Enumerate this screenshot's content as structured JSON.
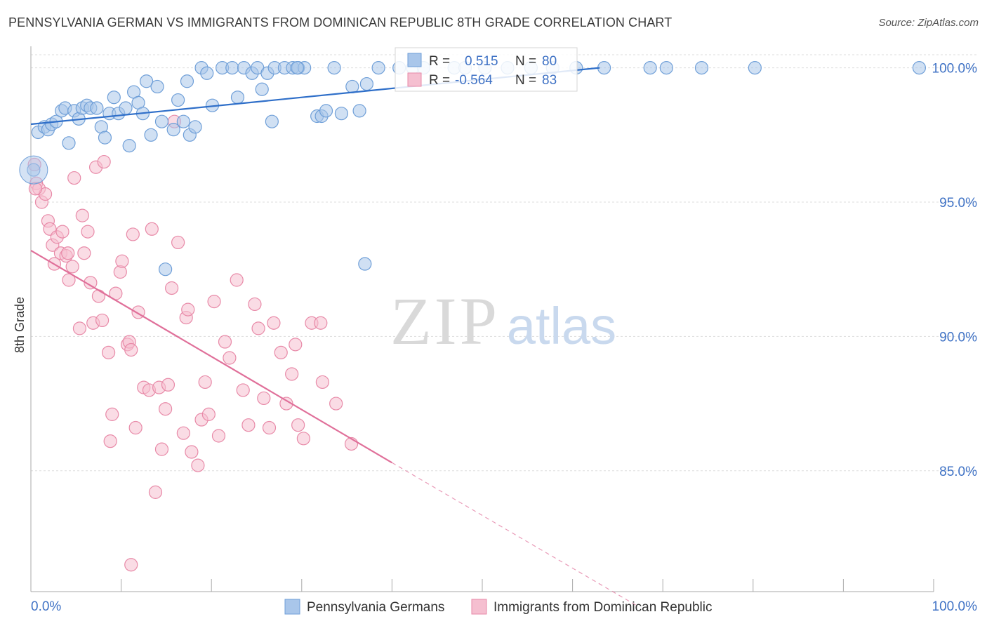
{
  "title": "PENNSYLVANIA GERMAN VS IMMIGRANTS FROM DOMINICAN REPUBLIC 8TH GRADE CORRELATION CHART",
  "source": "Source: ZipAtlas.com",
  "watermark": {
    "zip": "ZIP",
    "atlas": "atlas"
  },
  "legend_box": {
    "rows": [
      {
        "r_label": "R =",
        "r_value": "0.515",
        "n_label": "N =",
        "n_value": "80"
      },
      {
        "r_label": "R =",
        "r_value": "-0.564",
        "n_label": "N =",
        "n_value": "83"
      }
    ]
  },
  "colors": {
    "blue_fill": "#a9c6ea",
    "blue_stroke": "#6f9fd8",
    "blue_line": "#2f6fc9",
    "pink_fill": "#f5bfd0",
    "pink_stroke": "#e88aa8",
    "pink_line": "#e0709a",
    "value_text": "#3f72c5",
    "grid": "#dddddd",
    "axis": "#aaaaaa"
  },
  "chart_data": {
    "type": "scatter",
    "ylabel": "8th Grade",
    "xlim": [
      0,
      100
    ],
    "ylim": [
      80.5,
      100.8
    ],
    "x_tick_labels": [
      "0.0%",
      "100.0%"
    ],
    "y_ticks": [
      85,
      90,
      95,
      100
    ],
    "y_tick_labels": [
      "85.0%",
      "90.0%",
      "95.0%",
      "100.0%"
    ],
    "grid": true,
    "legend_position": "bottom",
    "series": [
      {
        "name": "Pennsylvania Germans",
        "r": 0.515,
        "n": 80,
        "trend": {
          "x0": 0,
          "y0": 97.9,
          "x1": 63,
          "y1": 100.0
        },
        "points": [
          [
            0.3,
            96.2
          ],
          [
            0.8,
            97.6
          ],
          [
            1.5,
            97.8
          ],
          [
            1.9,
            97.7
          ],
          [
            2.3,
            97.9
          ],
          [
            2.8,
            98.0
          ],
          [
            3.4,
            98.4
          ],
          [
            3.8,
            98.5
          ],
          [
            4.2,
            97.2
          ],
          [
            4.8,
            98.4
          ],
          [
            5.3,
            98.1
          ],
          [
            5.7,
            98.5
          ],
          [
            6.2,
            98.6
          ],
          [
            6.6,
            98.5
          ],
          [
            7.3,
            98.5
          ],
          [
            7.8,
            97.8
          ],
          [
            8.2,
            97.4
          ],
          [
            8.7,
            98.3
          ],
          [
            9.2,
            98.9
          ],
          [
            9.7,
            98.3
          ],
          [
            10.5,
            98.5
          ],
          [
            10.9,
            97.1
          ],
          [
            11.4,
            99.1
          ],
          [
            11.9,
            98.7
          ],
          [
            12.4,
            98.3
          ],
          [
            12.8,
            99.5
          ],
          [
            13.3,
            97.5
          ],
          [
            14.0,
            99.3
          ],
          [
            14.5,
            98.0
          ],
          [
            15.8,
            97.7
          ],
          [
            16.3,
            98.8
          ],
          [
            16.9,
            98.0
          ],
          [
            17.3,
            99.5
          ],
          [
            17.6,
            97.5
          ],
          [
            18.2,
            97.8
          ],
          [
            18.9,
            100.0
          ],
          [
            19.5,
            99.8
          ],
          [
            20.1,
            98.6
          ],
          [
            21.2,
            100.0
          ],
          [
            22.3,
            100.0
          ],
          [
            22.9,
            98.9
          ],
          [
            23.6,
            100.0
          ],
          [
            24.5,
            99.8
          ],
          [
            25.1,
            100.0
          ],
          [
            25.6,
            99.2
          ],
          [
            26.2,
            99.8
          ],
          [
            27.0,
            100.0
          ],
          [
            26.7,
            98.0
          ],
          [
            28.1,
            100.0
          ],
          [
            29.0,
            100.0
          ],
          [
            29.6,
            100.0
          ],
          [
            30.3,
            100.0
          ],
          [
            29.5,
            100.0
          ],
          [
            31.7,
            98.2
          ],
          [
            32.2,
            98.2
          ],
          [
            32.7,
            98.4
          ],
          [
            33.6,
            100.0
          ],
          [
            34.4,
            98.3
          ],
          [
            35.6,
            99.3
          ],
          [
            36.4,
            98.4
          ],
          [
            37.2,
            99.4
          ],
          [
            37.0,
            92.7
          ],
          [
            14.9,
            92.5
          ],
          [
            38.5,
            100.0
          ],
          [
            40.8,
            100.0
          ],
          [
            42.3,
            100.0
          ],
          [
            43.5,
            100.0
          ],
          [
            46.9,
            100.0
          ],
          [
            48.1,
            100.0
          ],
          [
            50.3,
            100.0
          ],
          [
            52.8,
            100.0
          ],
          [
            55.4,
            100.0
          ],
          [
            57.8,
            100.0
          ],
          [
            60.4,
            100.0
          ],
          [
            63.5,
            100.0
          ],
          [
            68.6,
            100.0
          ],
          [
            70.4,
            100.0
          ],
          [
            74.3,
            100.0
          ],
          [
            80.2,
            100.0
          ],
          [
            98.4,
            100.0
          ]
        ]
      },
      {
        "name": "Immigrants from Dominican Republic",
        "r": -0.564,
        "n": 83,
        "trend": {
          "x0": 0,
          "y0": 93.2,
          "x1": 40,
          "y1": 85.3
        },
        "trend_dashed": {
          "x0": 40,
          "y0": 85.3,
          "x1": 67,
          "y1": 80.0
        },
        "points": [
          [
            0.4,
            96.4
          ],
          [
            0.6,
            95.7
          ],
          [
            0.9,
            95.5
          ],
          [
            1.2,
            95.0
          ],
          [
            1.6,
            95.3
          ],
          [
            1.9,
            94.3
          ],
          [
            2.1,
            94.0
          ],
          [
            2.4,
            93.4
          ],
          [
            2.6,
            92.7
          ],
          [
            2.9,
            93.7
          ],
          [
            3.3,
            93.1
          ],
          [
            3.5,
            93.9
          ],
          [
            3.9,
            93.0
          ],
          [
            4.2,
            92.1
          ],
          [
            4.6,
            92.6
          ],
          [
            4.1,
            93.1
          ],
          [
            4.8,
            95.9
          ],
          [
            5.4,
            90.3
          ],
          [
            5.7,
            94.5
          ],
          [
            5.9,
            93.1
          ],
          [
            6.3,
            93.9
          ],
          [
            6.6,
            92.0
          ],
          [
            6.9,
            90.5
          ],
          [
            7.2,
            96.3
          ],
          [
            7.5,
            91.5
          ],
          [
            7.9,
            90.6
          ],
          [
            8.1,
            96.5
          ],
          [
            8.6,
            89.4
          ],
          [
            9.0,
            87.1
          ],
          [
            8.8,
            86.1
          ],
          [
            9.4,
            91.6
          ],
          [
            9.9,
            92.4
          ],
          [
            10.1,
            92.8
          ],
          [
            10.7,
            89.7
          ],
          [
            10.9,
            89.8
          ],
          [
            11.3,
            93.8
          ],
          [
            11.1,
            89.5
          ],
          [
            11.6,
            86.6
          ],
          [
            11.9,
            90.9
          ],
          [
            12.5,
            88.1
          ],
          [
            13.1,
            88.0
          ],
          [
            13.4,
            94.0
          ],
          [
            13.8,
            84.2
          ],
          [
            14.2,
            88.1
          ],
          [
            14.5,
            85.8
          ],
          [
            14.9,
            87.3
          ],
          [
            15.2,
            88.2
          ],
          [
            15.6,
            91.8
          ],
          [
            15.9,
            98.0
          ],
          [
            16.3,
            93.5
          ],
          [
            16.9,
            86.4
          ],
          [
            17.2,
            90.7
          ],
          [
            17.4,
            91.0
          ],
          [
            17.8,
            85.7
          ],
          [
            18.5,
            85.2
          ],
          [
            18.9,
            86.9
          ],
          [
            19.3,
            88.3
          ],
          [
            19.7,
            87.1
          ],
          [
            20.3,
            91.3
          ],
          [
            20.8,
            86.3
          ],
          [
            21.5,
            89.8
          ],
          [
            22.0,
            89.2
          ],
          [
            22.8,
            92.1
          ],
          [
            23.5,
            88.0
          ],
          [
            24.1,
            86.7
          ],
          [
            24.8,
            91.2
          ],
          [
            25.2,
            90.3
          ],
          [
            25.8,
            87.7
          ],
          [
            26.4,
            86.6
          ],
          [
            26.9,
            90.5
          ],
          [
            27.7,
            89.4
          ],
          [
            28.3,
            87.5
          ],
          [
            28.9,
            88.6
          ],
          [
            29.3,
            89.7
          ],
          [
            29.6,
            86.7
          ],
          [
            30.2,
            86.2
          ],
          [
            31.1,
            90.5
          ],
          [
            32.1,
            90.5
          ],
          [
            32.3,
            88.3
          ],
          [
            33.8,
            87.5
          ],
          [
            35.5,
            86.0
          ],
          [
            11.1,
            81.5
          ],
          [
            0.5,
            95.5
          ]
        ]
      }
    ]
  }
}
